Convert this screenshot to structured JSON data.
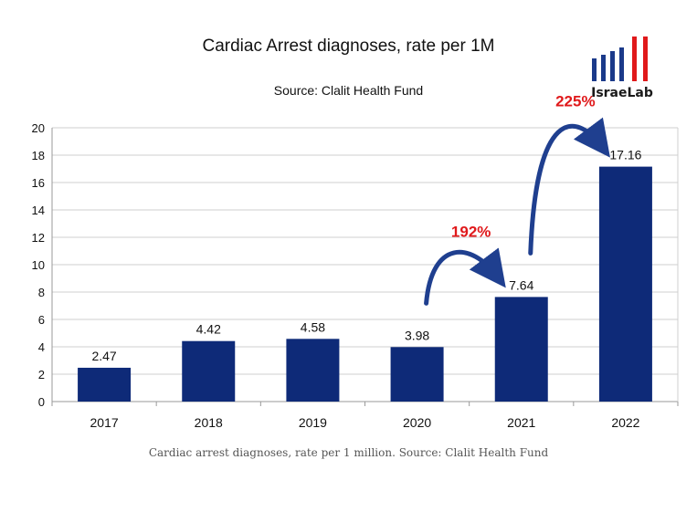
{
  "logo_text": "IsraeLab",
  "caption": "Cardiac arrest diagnoses, rate per 1 million. Source: Clalit Health Fund",
  "colors": {
    "bar": "#0e2a78",
    "annotation": "#e0191b",
    "arrow": "#1f3f8f",
    "logo_blue": "#1b3a8a",
    "logo_red": "#e0191b"
  },
  "chart_data": {
    "type": "bar",
    "title": "Cardiac Arrest diagnoses, rate per 1M",
    "subtitle": "Source: Clalit Health Fund",
    "categories": [
      "2017",
      "2018",
      "2019",
      "2020",
      "2021",
      "2022"
    ],
    "values": [
      2.47,
      4.42,
      4.58,
      3.98,
      7.64,
      17.16
    ],
    "data_labels": [
      "2.47",
      "4.42",
      "4.58",
      "3.98",
      "7.64",
      "17.16"
    ],
    "ylim": [
      0,
      20
    ],
    "yticks": [
      0,
      2,
      4,
      6,
      8,
      10,
      12,
      14,
      16,
      18,
      20
    ],
    "grid": true,
    "annotations": [
      {
        "text": "192%",
        "from": "2020",
        "to": "2021"
      },
      {
        "text": "225%",
        "from": "2021",
        "to": "2022"
      }
    ]
  }
}
